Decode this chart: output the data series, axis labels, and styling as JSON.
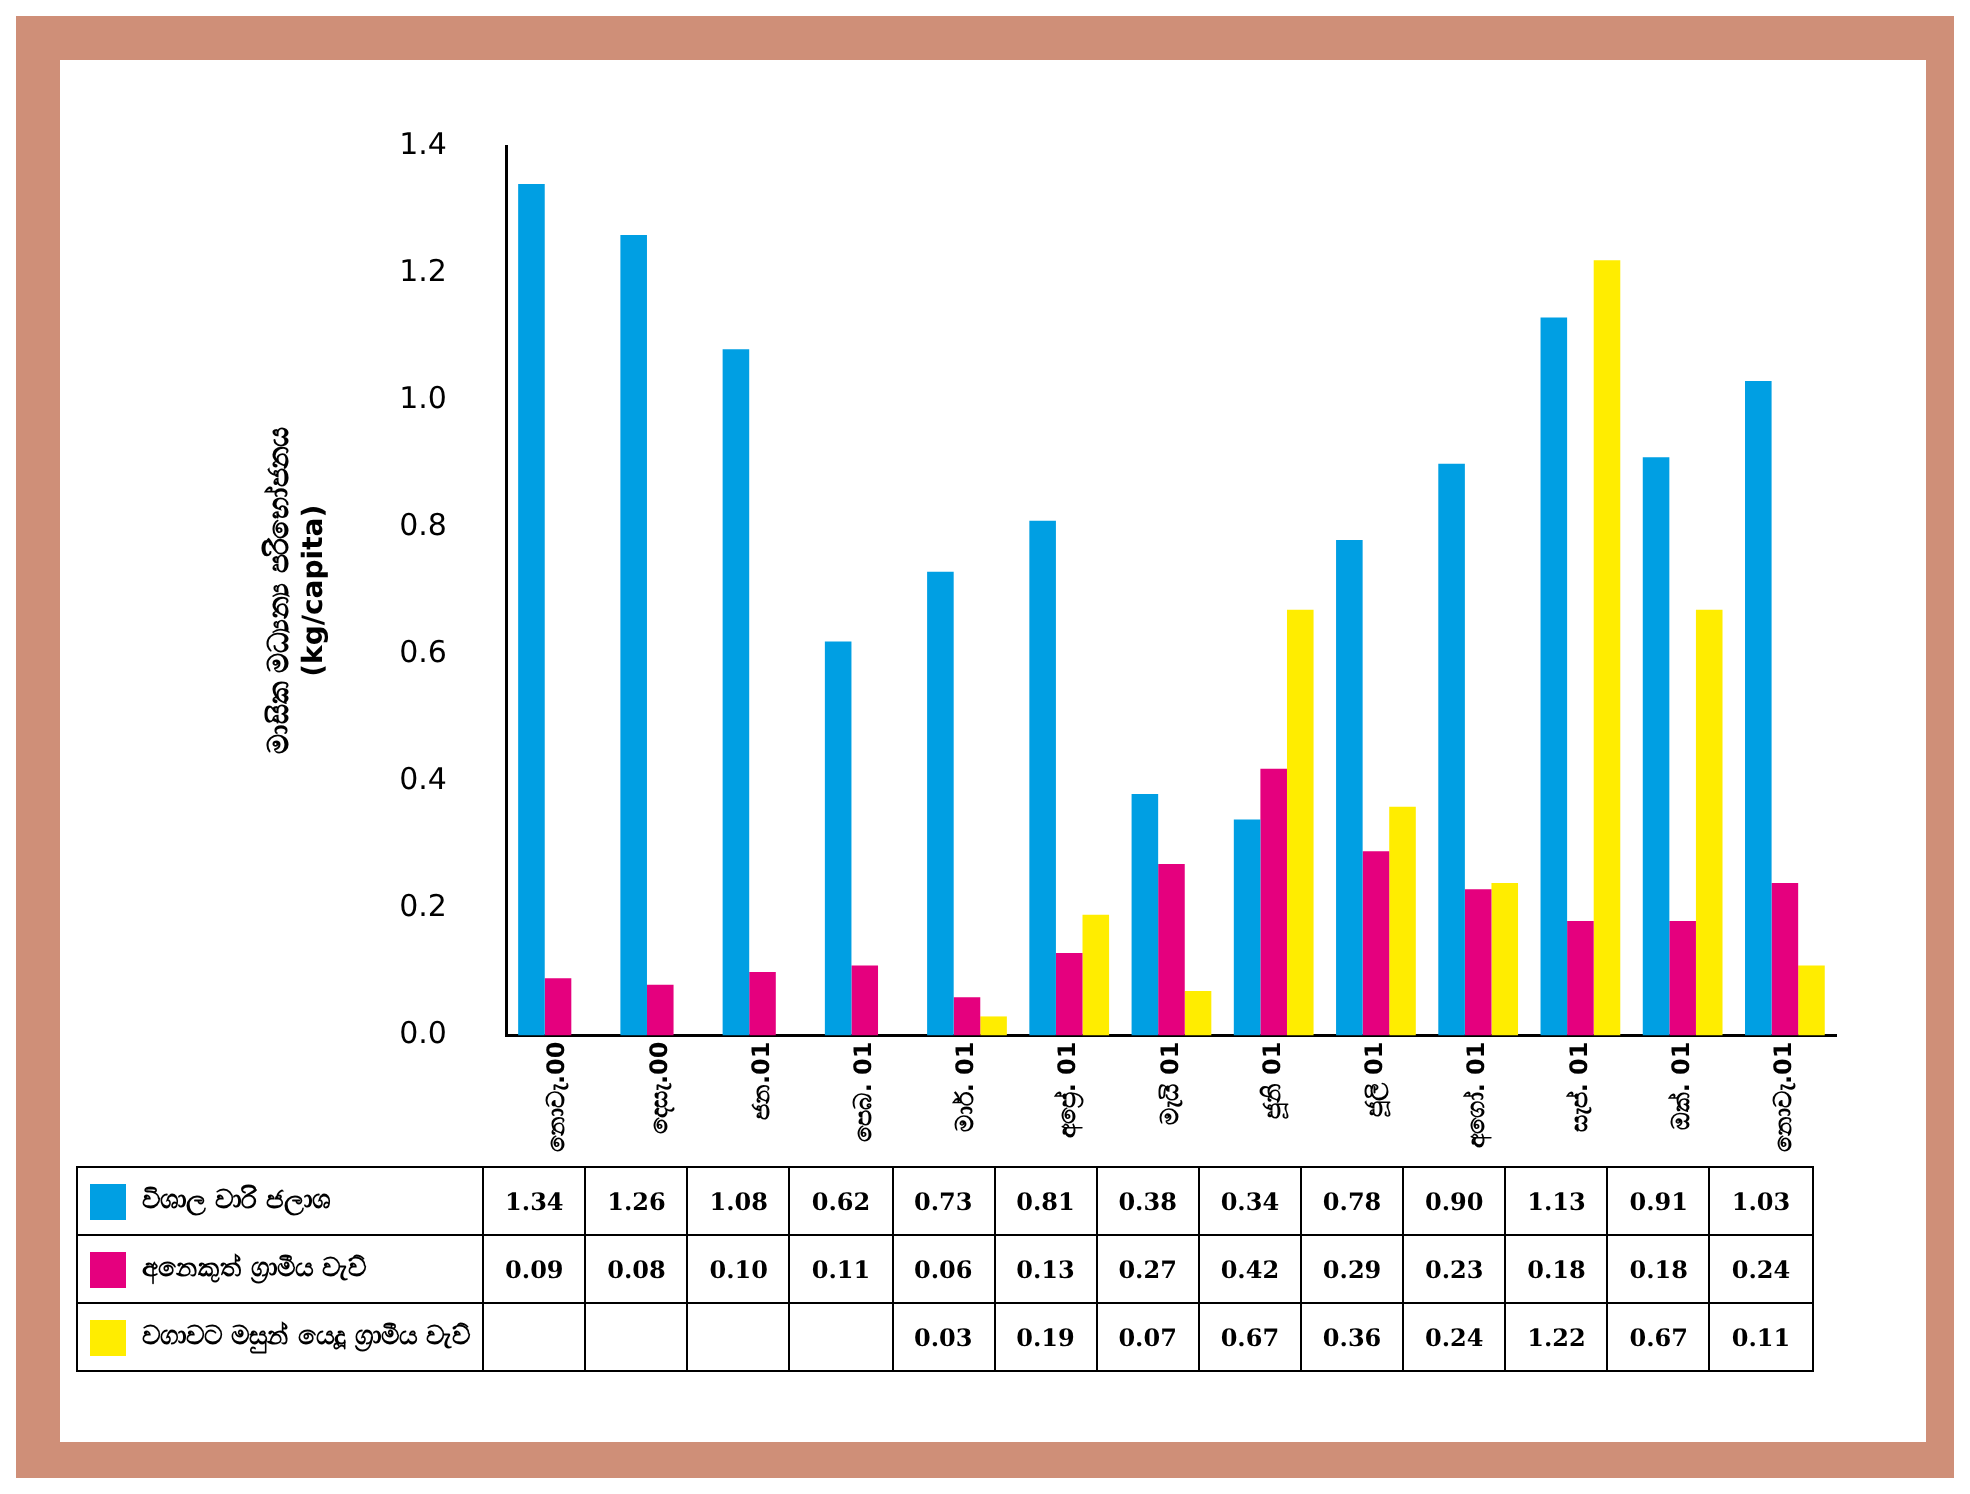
{
  "chart_data": {
    "type": "bar",
    "ylabel": "මාසික මධ්‍යන්‍ය පරිභෝජනය\n(kg/capita)",
    "categories": [
      "නොවැ.00",
      "දෙසැ.00",
      "ජන.01",
      "පෙබ. 01",
      "මාර්. 01",
      "අප්‍රේ. 01",
      "මැයි 01",
      "ජූනි 01",
      "ජූලි 01",
      "අගෝ. 01",
      "සැප්. 01",
      "ඔක්. 01",
      "නොවැ.01"
    ],
    "series": [
      {
        "name": "විශාල වාරි ජලාශ",
        "color": "#009fe3",
        "values": [
          1.34,
          1.26,
          1.08,
          0.62,
          0.73,
          0.81,
          0.38,
          0.34,
          0.78,
          0.9,
          1.13,
          0.91,
          1.03
        ],
        "value_labels": [
          "1.34",
          "1.26",
          "1.08",
          "0.62",
          "0.73",
          "0.81",
          "0.38",
          "0.34",
          "0.78",
          "0.90",
          "1.13",
          "0.91",
          "1.03"
        ]
      },
      {
        "name": "අනෙකුත් ග්‍රාමීය වැව්",
        "color": "#e5007e",
        "values": [
          0.09,
          0.08,
          0.1,
          0.11,
          0.06,
          0.13,
          0.27,
          0.42,
          0.29,
          0.23,
          0.18,
          0.18,
          0.24
        ],
        "value_labels": [
          "0.09",
          "0.08",
          "0.10",
          "0.11",
          "0.06",
          "0.13",
          "0.27",
          "0.42",
          "0.29",
          "0.23",
          "0.18",
          "0.18",
          "0.24"
        ]
      },
      {
        "name": "වගාවට මසුන් යෙදූ ග්‍රාමීය වැව්",
        "color": "#ffed00",
        "values": [
          null,
          null,
          null,
          null,
          0.03,
          0.19,
          0.07,
          0.67,
          0.36,
          0.24,
          1.22,
          0.67,
          0.11
        ],
        "value_labels": [
          null,
          null,
          null,
          null,
          "0.03",
          "0.19",
          "0.07",
          "0.67",
          "0.36",
          "0.24",
          "1.22",
          "0.67",
          "0.11"
        ]
      }
    ],
    "ylim": [
      0,
      1.4
    ],
    "yticks": [
      {
        "value": 0,
        "label": "0.0"
      },
      {
        "value": 0.2,
        "label": "0.2"
      },
      {
        "value": 0.4,
        "label": "0.4"
      },
      {
        "value": 0.6,
        "label": "0.6"
      },
      {
        "value": 0.8,
        "label": "0.8"
      },
      {
        "value": 1.0,
        "label": "1.0"
      },
      {
        "value": 1.2,
        "label": "1.2"
      },
      {
        "value": 1.4,
        "label": "1.4"
      }
    ],
    "grid": false,
    "legend": "bottom"
  }
}
